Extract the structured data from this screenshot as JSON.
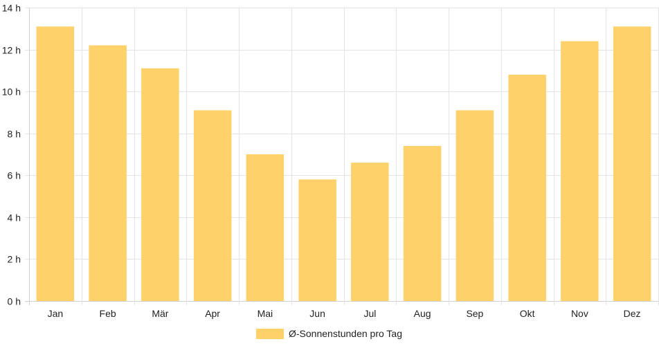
{
  "chart_data": {
    "type": "bar",
    "categories": [
      "Jan",
      "Feb",
      "Mär",
      "Apr",
      "Mai",
      "Jun",
      "Jul",
      "Aug",
      "Sep",
      "Okt",
      "Nov",
      "Dez"
    ],
    "series": [
      {
        "name": "Ø-Sonnenstunden pro Tag",
        "values": [
          13.1,
          12.2,
          11.1,
          9.1,
          7.0,
          5.8,
          6.6,
          7.4,
          9.1,
          10.8,
          12.4,
          13.1
        ],
        "color": "#fed16a"
      }
    ],
    "ylim": [
      0,
      14
    ],
    "yticks": [
      0,
      2,
      4,
      6,
      8,
      10,
      12,
      14
    ],
    "ytick_suffix": " h",
    "grid": true,
    "legend_position": "bottom-center"
  },
  "legend": {
    "label": "Ø-Sonnenstunden pro Tag"
  }
}
